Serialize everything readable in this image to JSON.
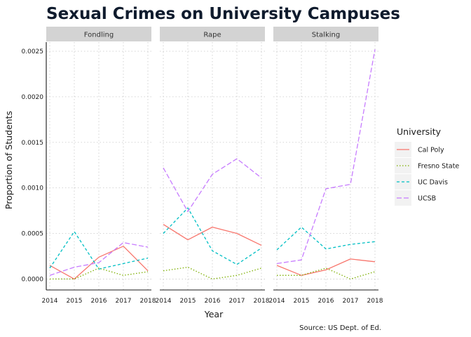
{
  "chart_data": {
    "type": "line",
    "title": "Sexual Crimes on University Campuses",
    "xlabel": "Year",
    "ylabel": "Proportion of Students",
    "caption": "Source: US Dept. of Ed.",
    "legend_title": "University",
    "legend_position": "right",
    "grid": true,
    "x": [
      2014,
      2015,
      2016,
      2017,
      2018
    ],
    "x_ticks": [
      "2014",
      "2015",
      "2016",
      "2017",
      "2018"
    ],
    "xlim": [
      2014,
      2018
    ],
    "ylim": [
      -0.00012,
      0.0026
    ],
    "y_ticks": [
      "0.0000",
      "0.0005",
      "0.0010",
      "0.0015",
      "0.0020",
      "0.0025"
    ],
    "y_tick_values": [
      0,
      0.0005,
      0.001,
      0.0015,
      0.002,
      0.0025
    ],
    "series_styles": [
      {
        "name": "Cal Poly",
        "color": "#f8766d",
        "dash": "solid"
      },
      {
        "name": "Fresno State",
        "color": "#7cae00",
        "dash": "dotted"
      },
      {
        "name": "UC Davis",
        "color": "#00bfc4",
        "dash": "dashed"
      },
      {
        "name": "UCSB",
        "color": "#c77cff",
        "dash": "longdash"
      }
    ],
    "panels": [
      {
        "label": "Fondling",
        "series": [
          {
            "name": "Cal Poly",
            "values": [
              0.00015,
              0.0,
              0.00024,
              0.00036,
              9e-05
            ]
          },
          {
            "name": "Fresno State",
            "values": [
              0.0,
              0.0,
              0.00012,
              4e-05,
              8e-05
            ]
          },
          {
            "name": "UC Davis",
            "values": [
              0.00012,
              0.00052,
              0.00011,
              0.00017,
              0.00023
            ]
          },
          {
            "name": "UCSB",
            "values": [
              4e-05,
              0.00013,
              0.00018,
              0.0004,
              0.00035
            ]
          }
        ]
      },
      {
        "label": "Rape",
        "series": [
          {
            "name": "Cal Poly",
            "values": [
              0.0006,
              0.00043,
              0.00057,
              0.0005,
              0.00037
            ]
          },
          {
            "name": "Fresno State",
            "values": [
              9e-05,
              0.00013,
              0.0,
              4e-05,
              0.00012
            ]
          },
          {
            "name": "UC Davis",
            "values": [
              0.0005,
              0.00078,
              0.00031,
              0.00016,
              0.00034
            ]
          },
          {
            "name": "UCSB",
            "values": [
              0.00122,
              0.00074,
              0.00115,
              0.00132,
              0.00111
            ]
          }
        ]
      },
      {
        "label": "Stalking",
        "series": [
          {
            "name": "Cal Poly",
            "values": [
              0.00015,
              4e-05,
              0.0001,
              0.00022,
              0.00019
            ]
          },
          {
            "name": "Fresno State",
            "values": [
              4e-05,
              4e-05,
              0.00012,
              0.0,
              8e-05
            ]
          },
          {
            "name": "UC Davis",
            "values": [
              0.00032,
              0.00057,
              0.00033,
              0.00038,
              0.00041
            ]
          },
          {
            "name": "UCSB",
            "values": [
              0.00017,
              0.00021,
              0.00099,
              0.00104,
              0.00252
            ]
          }
        ]
      }
    ]
  }
}
